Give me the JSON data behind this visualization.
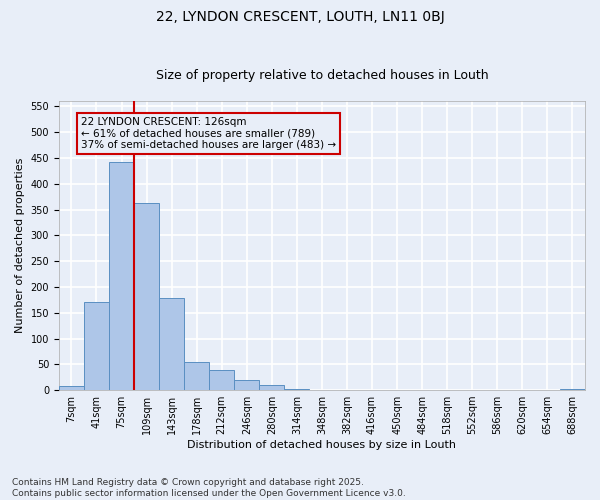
{
  "title_line1": "22, LYNDON CRESCENT, LOUTH, LN11 0BJ",
  "title_line2": "Size of property relative to detached houses in Louth",
  "xlabel": "Distribution of detached houses by size in Louth",
  "ylabel": "Number of detached properties",
  "bin_labels": [
    "7sqm",
    "41sqm",
    "75sqm",
    "109sqm",
    "143sqm",
    "178sqm",
    "212sqm",
    "246sqm",
    "280sqm",
    "314sqm",
    "348sqm",
    "382sqm",
    "416sqm",
    "450sqm",
    "484sqm",
    "518sqm",
    "552sqm",
    "586sqm",
    "620sqm",
    "654sqm",
    "688sqm"
  ],
  "bar_values": [
    8,
    170,
    443,
    363,
    178,
    55,
    38,
    20,
    10,
    2,
    0,
    0,
    0,
    0,
    0,
    0,
    1,
    0,
    0,
    0,
    3
  ],
  "bar_color": "#aec6e8",
  "bar_edge_color": "#5a8fc2",
  "background_color": "#e8eef8",
  "grid_color": "#ffffff",
  "vline_color": "#cc0000",
  "annotation_text": "22 LYNDON CRESCENT: 126sqm\n← 61% of detached houses are smaller (789)\n37% of semi-detached houses are larger (483) →",
  "annotation_box_color": "#cc0000",
  "ylim": [
    0,
    560
  ],
  "yticks": [
    0,
    50,
    100,
    150,
    200,
    250,
    300,
    350,
    400,
    450,
    500,
    550
  ],
  "footnote": "Contains HM Land Registry data © Crown copyright and database right 2025.\nContains public sector information licensed under the Open Government Licence v3.0.",
  "title_fontsize": 10,
  "subtitle_fontsize": 9,
  "axis_label_fontsize": 8,
  "tick_fontsize": 7,
  "annotation_fontsize": 7.5,
  "footnote_fontsize": 6.5
}
